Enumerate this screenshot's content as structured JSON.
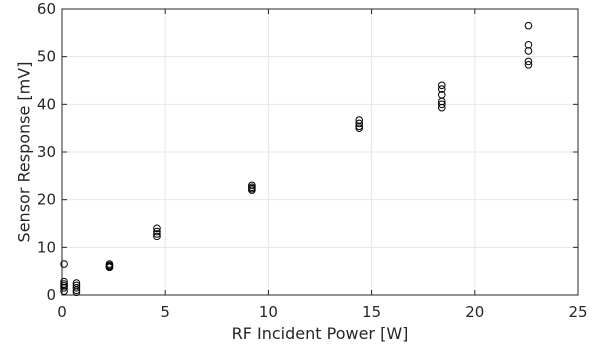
{
  "chart_data": {
    "type": "scatter",
    "title": "",
    "xlabel": "RF Incident Power [W]",
    "ylabel": "Sensor Response [mV]",
    "xlim": [
      0,
      25
    ],
    "ylim": [
      0,
      60
    ],
    "xticks": [
      0,
      5,
      10,
      15,
      20,
      25
    ],
    "yticks": [
      0,
      10,
      20,
      30,
      40,
      50,
      60
    ],
    "grid": true,
    "marker": "open-circle",
    "marker_color": "#000000",
    "points": [
      {
        "x": 0.1,
        "y": 6.5
      },
      {
        "x": 0.1,
        "y": 2.8
      },
      {
        "x": 0.1,
        "y": 2.3
      },
      {
        "x": 0.1,
        "y": 1.9
      },
      {
        "x": 0.1,
        "y": 1.5
      },
      {
        "x": 0.1,
        "y": 0.8
      },
      {
        "x": 0.7,
        "y": 2.5
      },
      {
        "x": 0.7,
        "y": 2.0
      },
      {
        "x": 0.7,
        "y": 1.5
      },
      {
        "x": 0.7,
        "y": 1.0
      },
      {
        "x": 0.7,
        "y": 0.6
      },
      {
        "x": 2.3,
        "y": 6.5
      },
      {
        "x": 2.3,
        "y": 6.2
      },
      {
        "x": 2.3,
        "y": 6.0
      },
      {
        "x": 2.3,
        "y": 5.8
      },
      {
        "x": 4.6,
        "y": 14.0
      },
      {
        "x": 4.6,
        "y": 13.3
      },
      {
        "x": 4.6,
        "y": 12.8
      },
      {
        "x": 4.6,
        "y": 12.3
      },
      {
        "x": 9.2,
        "y": 23.0
      },
      {
        "x": 9.2,
        "y": 22.6
      },
      {
        "x": 9.2,
        "y": 22.3
      },
      {
        "x": 9.2,
        "y": 22.0
      },
      {
        "x": 14.4,
        "y": 36.7
      },
      {
        "x": 14.4,
        "y": 36.0
      },
      {
        "x": 14.4,
        "y": 35.4
      },
      {
        "x": 14.4,
        "y": 35.0
      },
      {
        "x": 18.4,
        "y": 44.0
      },
      {
        "x": 18.4,
        "y": 43.2
      },
      {
        "x": 18.4,
        "y": 42.0
      },
      {
        "x": 18.4,
        "y": 40.6
      },
      {
        "x": 18.4,
        "y": 40.0
      },
      {
        "x": 18.4,
        "y": 39.3
      },
      {
        "x": 22.6,
        "y": 56.5
      },
      {
        "x": 22.6,
        "y": 52.5
      },
      {
        "x": 22.6,
        "y": 51.2
      },
      {
        "x": 22.6,
        "y": 49.0
      },
      {
        "x": 22.6,
        "y": 48.3
      }
    ]
  }
}
